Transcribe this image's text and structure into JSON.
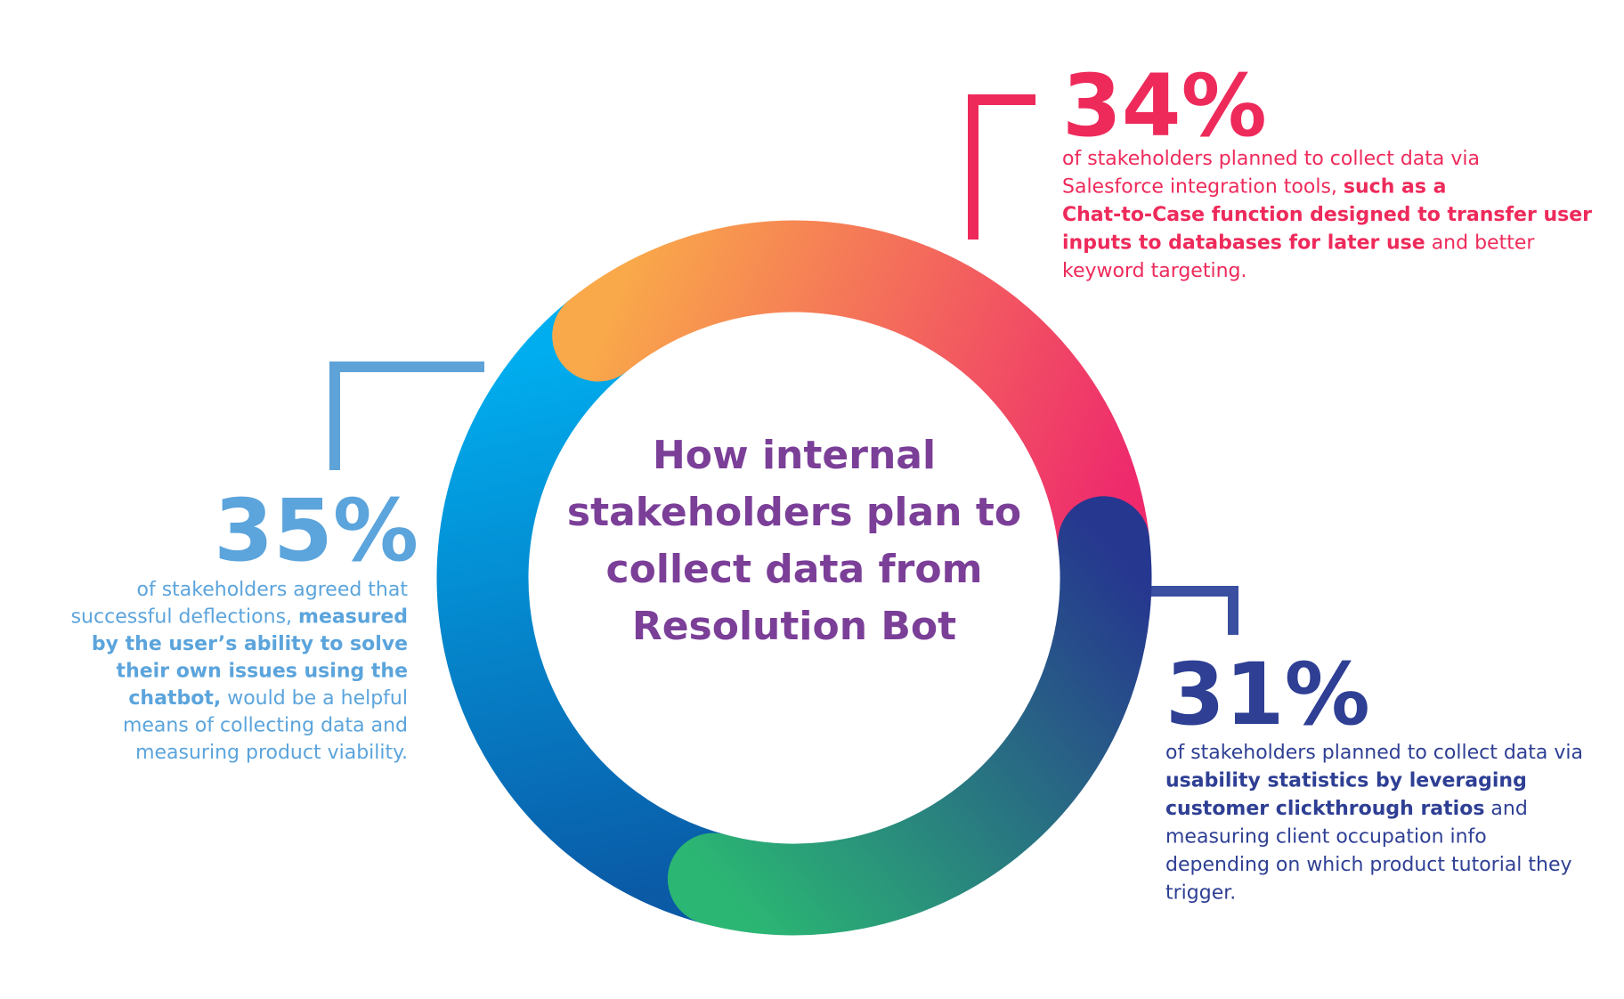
{
  "chart_data": {
    "type": "donut",
    "title_lines": [
      "How internal",
      "stakeholders plan to",
      "collect data from",
      "Resolution Bot"
    ],
    "title_color": "#7b3f98",
    "values": [
      34,
      31,
      35
    ],
    "value_labels": [
      "34%",
      "31%",
      "35%"
    ],
    "start_angle": -39,
    "gradients": [
      [
        "#f9a94a",
        "#ee2a6d"
      ],
      [
        "#26378f",
        "#2bb673"
      ],
      [
        "#0a5aa6",
        "#00aeef"
      ]
    ],
    "label_colors": [
      "#ee2a5b",
      "#2e3f94",
      "#5ba4dc"
    ],
    "descriptions": [
      {
        "lines": [
          [
            {
              "text": "of stakeholders planned to collect data via",
              "bold": false
            }
          ],
          [
            {
              "text": "Salesforce integration tools, ",
              "bold": false
            },
            {
              "text": "such as a",
              "bold": true
            }
          ],
          [
            {
              "text": "Chat-to-Case function designed to transfer user",
              "bold": true
            }
          ],
          [
            {
              "text": "inputs to databases for later use",
              "bold": true
            },
            {
              "text": " and better",
              "bold": false
            }
          ],
          [
            {
              "text": "keyword targeting.",
              "bold": false
            }
          ]
        ]
      },
      {
        "lines": [
          [
            {
              "text": "of stakeholders planned to collect data via",
              "bold": false
            }
          ],
          [
            {
              "text": "usability statistics by leveraging",
              "bold": true
            }
          ],
          [
            {
              "text": "customer clickthrough ratios",
              "bold": true
            },
            {
              "text": " and",
              "bold": false
            }
          ],
          [
            {
              "text": "measuring client occupation info",
              "bold": false
            }
          ],
          [
            {
              "text": "depending on which product tutorial they",
              "bold": false
            }
          ],
          [
            {
              "text": "trigger.",
              "bold": false
            }
          ]
        ]
      },
      {
        "lines": [
          [
            {
              "text": "of stakeholders agreed that",
              "bold": false
            }
          ],
          [
            {
              "text": "successful deflections, ",
              "bold": false
            },
            {
              "text": "measured",
              "bold": true
            }
          ],
          [
            {
              "text": "by the user’s ability to solve",
              "bold": true
            }
          ],
          [
            {
              "text": "their own issues using the",
              "bold": true
            }
          ],
          [
            {
              "text": "chatbot,",
              "bold": true
            },
            {
              "text": " would be a helpful",
              "bold": false
            }
          ],
          [
            {
              "text": "means of collecting data and",
              "bold": false
            }
          ],
          [
            {
              "text": "measuring product viability.",
              "bold": false
            }
          ]
        ]
      }
    ]
  }
}
